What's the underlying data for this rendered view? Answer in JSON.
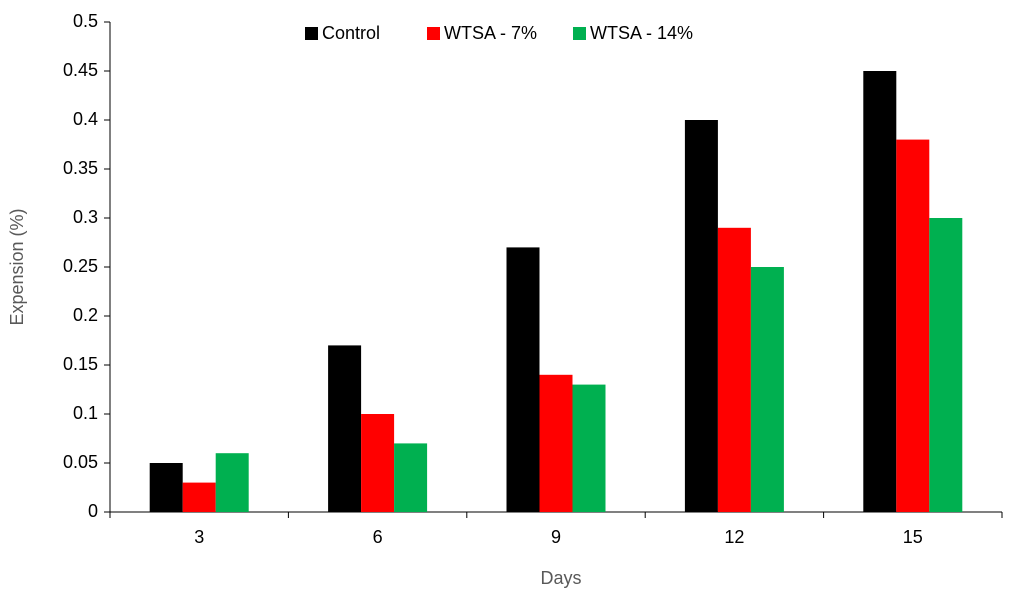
{
  "chart_data": {
    "type": "bar",
    "x_label": "Days",
    "y_label": "Expension  (%)",
    "categories": [
      "3",
      "6",
      "9",
      "12",
      "15"
    ],
    "series": [
      {
        "name": "Control",
        "color": "#000000",
        "values": [
          0.05,
          0.17,
          0.27,
          0.4,
          0.45
        ]
      },
      {
        "name": "WTSA - 7%",
        "color": "#ff0000",
        "values": [
          0.03,
          0.1,
          0.14,
          0.29,
          0.38
        ]
      },
      {
        "name": "WTSA - 14%",
        "color": "#00b050",
        "values": [
          0.06,
          0.07,
          0.13,
          0.25,
          0.3
        ]
      }
    ],
    "ylim": [
      0,
      0.5
    ],
    "yticks": [
      0,
      0.05,
      0.1,
      0.15,
      0.2,
      0.25,
      0.3,
      0.35,
      0.4,
      0.45,
      0.5
    ],
    "grid": false,
    "legend": "top"
  }
}
